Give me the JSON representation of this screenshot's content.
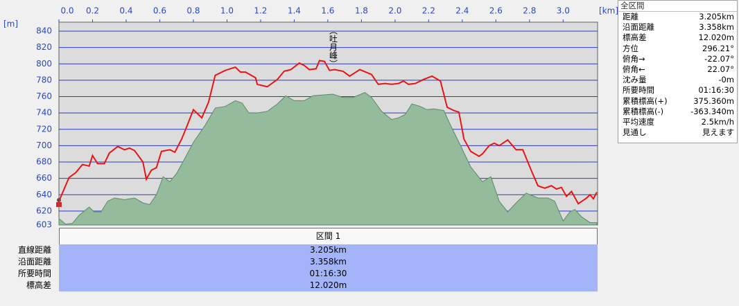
{
  "chart_data": {
    "type": "area-line",
    "y_unit": "[m]",
    "x_unit": "[km]",
    "annotation": "（吐月峰）",
    "xlim": [
      0,
      3.205
    ],
    "ylim": [
      603,
      851
    ],
    "xticks": [
      {
        "value": 0,
        "label": "0.0"
      },
      0.2,
      0.4,
      0.6,
      0.8,
      {
        "value": 1,
        "label": "1.0"
      },
      1.2,
      1.4,
      1.6,
      1.8,
      {
        "value": 2,
        "label": "2.0"
      },
      2.2,
      2.4,
      2.6,
      2.8,
      {
        "value": 3,
        "label": "3.0"
      }
    ],
    "yticks": [
      603,
      620,
      640,
      660,
      680,
      700,
      720,
      740,
      760,
      780,
      800,
      820,
      840
    ],
    "grid": true,
    "series": [
      {
        "type": "area",
        "color": "#94bb9c",
        "edge": "#5a8a66",
        "x": [
          0.0,
          0.04,
          0.08,
          0.12,
          0.18,
          0.21,
          0.25,
          0.29,
          0.33,
          0.39,
          0.45,
          0.5,
          0.54,
          0.58,
          0.62,
          0.66,
          0.7,
          0.74,
          0.8,
          0.87,
          0.93,
          0.99,
          1.05,
          1.09,
          1.13,
          1.18,
          1.24,
          1.3,
          1.35,
          1.4,
          1.46,
          1.51,
          1.57,
          1.63,
          1.69,
          1.75,
          1.82,
          1.86,
          1.92,
          1.98,
          2.02,
          2.06,
          2.1,
          2.15,
          2.19,
          2.23,
          2.29,
          2.33,
          2.39,
          2.45,
          2.52,
          2.57,
          2.62,
          2.67,
          2.72,
          2.78,
          2.85,
          2.91,
          2.95,
          3.0,
          3.04,
          3.07,
          3.11,
          3.16,
          3.2
        ],
        "values": [
          611,
          604,
          605,
          615,
          625,
          619,
          619,
          632,
          636,
          634,
          636,
          630,
          628,
          640,
          662,
          656,
          666,
          681,
          704,
          725,
          746,
          748,
          755,
          752,
          740,
          740,
          742,
          751,
          761,
          755,
          755,
          761,
          762,
          763,
          759,
          759,
          765,
          759,
          742,
          732,
          734,
          738,
          751,
          748,
          744,
          745,
          743,
          725,
          700,
          674,
          656,
          662,
          632,
          619,
          630,
          642,
          636,
          636,
          632,
          608,
          619,
          622,
          613,
          606,
          606
        ]
      },
      {
        "type": "line",
        "color": "#e81414",
        "x": [
          0.0,
          0.06,
          0.1,
          0.14,
          0.18,
          0.2,
          0.23,
          0.27,
          0.3,
          0.35,
          0.39,
          0.42,
          0.45,
          0.5,
          0.52,
          0.55,
          0.58,
          0.61,
          0.66,
          0.69,
          0.73,
          0.76,
          0.8,
          0.85,
          0.89,
          0.93,
          0.99,
          1.05,
          1.08,
          1.11,
          1.17,
          1.18,
          1.24,
          1.3,
          1.34,
          1.38,
          1.43,
          1.46,
          1.49,
          1.53,
          1.55,
          1.58,
          1.61,
          1.64,
          1.69,
          1.73,
          1.79,
          1.86,
          1.9,
          1.94,
          1.98,
          2.02,
          2.05,
          2.08,
          2.12,
          2.17,
          2.22,
          2.27,
          2.31,
          2.35,
          2.38,
          2.41,
          2.45,
          2.5,
          2.52,
          2.56,
          2.59,
          2.62,
          2.67,
          2.72,
          2.76,
          2.81,
          2.85,
          2.89,
          2.93,
          2.96,
          2.99,
          3.02,
          3.05,
          3.09,
          3.14,
          3.16,
          3.18,
          3.2
        ],
        "values": [
          632,
          661,
          667,
          677,
          675,
          688,
          678,
          678,
          691,
          699,
          695,
          697,
          694,
          680,
          659,
          670,
          673,
          693,
          695,
          692,
          708,
          723,
          744,
          734,
          753,
          786,
          792,
          796,
          790,
          790,
          783,
          775,
          772,
          781,
          791,
          793,
          801,
          798,
          793,
          794,
          804,
          803,
          792,
          793,
          791,
          785,
          793,
          787,
          775,
          776,
          775,
          776,
          779,
          775,
          776,
          781,
          785,
          779,
          747,
          743,
          741,
          708,
          693,
          687,
          690,
          700,
          703,
          700,
          707,
          695,
          695,
          670,
          651,
          648,
          651,
          647,
          649,
          638,
          644,
          629,
          636,
          640,
          635,
          643
        ]
      }
    ]
  },
  "info_panel": {
    "title": "全区間",
    "rows": [
      [
        "距離",
        "3.205km"
      ],
      [
        "沿面距離",
        "3.358km"
      ],
      [
        "標高差",
        "12.020m"
      ],
      [
        "方位",
        "296.21°"
      ],
      [
        "俯角→",
        "-22.07°"
      ],
      [
        "俯角←",
        "22.07°"
      ],
      [
        "沈み量",
        "-0m"
      ],
      [
        "所要時間",
        "01:16:30"
      ],
      [
        "累積標高(+)",
        "375.360m"
      ],
      [
        "累積標高(-)",
        "-363.340m"
      ],
      [
        "平均速度",
        "2.5km/h"
      ],
      [
        "見通し",
        "見えます"
      ]
    ]
  },
  "section_table": {
    "header": "区間 1",
    "rows": [
      [
        "直線距離",
        "3.205km"
      ],
      [
        "沿面距離",
        "3.358km"
      ],
      [
        "所要時間",
        "01:16:30"
      ],
      [
        "標高差",
        "12.020m"
      ]
    ]
  }
}
